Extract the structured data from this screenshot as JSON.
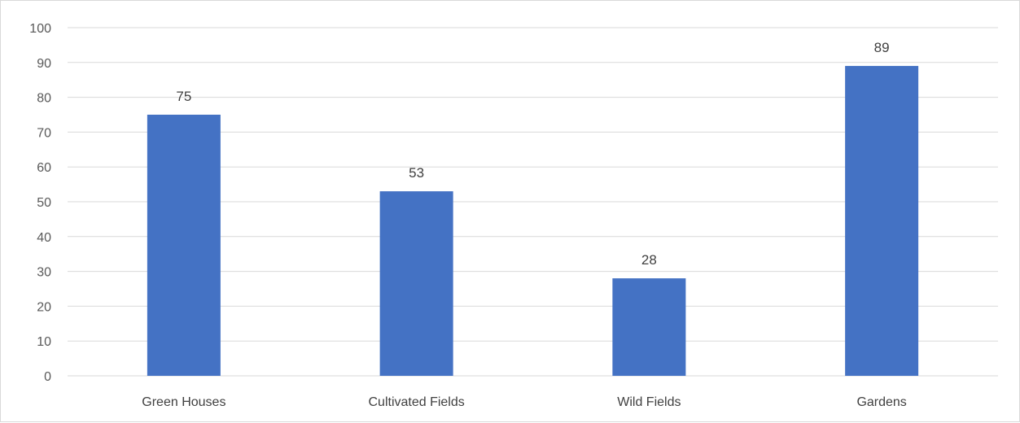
{
  "chart_data": {
    "type": "bar",
    "title": "",
    "xlabel": "",
    "ylabel": "",
    "categories": [
      "Green Houses",
      "Cultivated Fields",
      "Wild Fields",
      "Gardens"
    ],
    "values": [
      75,
      53,
      28,
      89
    ],
    "data_labels": [
      "75",
      "53",
      "28",
      "89"
    ],
    "ylim": [
      0,
      100
    ],
    "yticks": [
      "0",
      "10",
      "20",
      "30",
      "40",
      "50",
      "60",
      "70",
      "80",
      "90",
      "100"
    ],
    "grid": true,
    "legend": "none",
    "bar_color": "#4472c4",
    "grid_color": "#d9d9d9"
  }
}
